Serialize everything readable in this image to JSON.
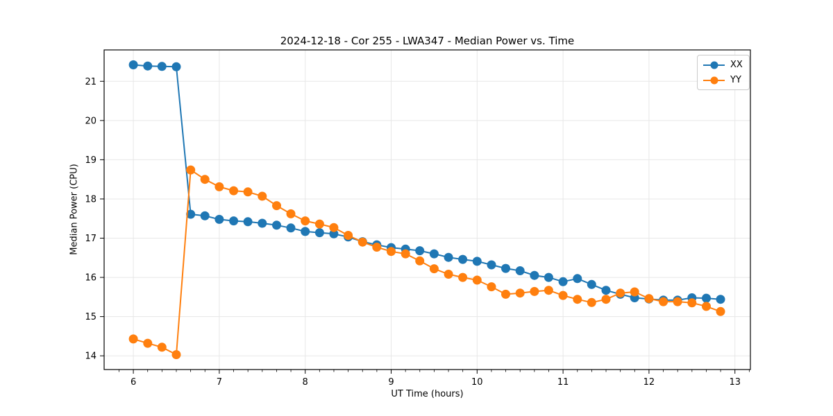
{
  "figure": {
    "title": "2024-12-18 - Cor 255 - LWA347 - Median Power vs. Time",
    "xlabel": "UT Time (hours)",
    "ylabel": "Median Power (CPU)"
  },
  "chart_data": {
    "type": "line",
    "title": "2024-12-18 - Cor 255 - LWA347 - Median Power vs. Time",
    "xlabel": "UT Time (hours)",
    "ylabel": "Median Power (CPU)",
    "grid": true,
    "legend_position": "upper right",
    "xlim": [
      5.66,
      13.18
    ],
    "ylim": [
      13.65,
      21.8
    ],
    "x_ticks": [
      6,
      7,
      8,
      9,
      10,
      11,
      12,
      13
    ],
    "y_ticks": [
      14,
      15,
      16,
      17,
      18,
      19,
      20,
      21
    ],
    "x_minor_step": 0.16667,
    "x": [
      6.0,
      6.167,
      6.333,
      6.5,
      6.667,
      6.833,
      7.0,
      7.167,
      7.333,
      7.5,
      7.667,
      7.833,
      8.0,
      8.167,
      8.333,
      8.5,
      8.667,
      8.833,
      9.0,
      9.167,
      9.333,
      9.5,
      9.667,
      9.833,
      10.0,
      10.167,
      10.333,
      10.5,
      10.667,
      10.833,
      11.0,
      11.167,
      11.333,
      11.5,
      11.667,
      11.833,
      12.0,
      12.167,
      12.333,
      12.5,
      12.667,
      12.833
    ],
    "series": [
      {
        "name": "XX",
        "color": "#1f77b4",
        "marker": "circle",
        "values": [
          21.42,
          21.39,
          21.38,
          21.37,
          17.61,
          17.57,
          17.48,
          17.44,
          17.42,
          17.38,
          17.33,
          17.26,
          17.17,
          17.14,
          17.11,
          17.03,
          16.91,
          16.83,
          16.76,
          16.72,
          16.68,
          16.6,
          16.51,
          16.46,
          16.41,
          16.32,
          16.23,
          16.17,
          16.05,
          16.0,
          15.89,
          15.97,
          15.82,
          15.67,
          15.57,
          15.48,
          15.45,
          15.42,
          15.42,
          15.48,
          15.47,
          15.44
        ]
      },
      {
        "name": "YY",
        "color": "#ff7f0e",
        "marker": "circle",
        "values": [
          14.43,
          14.32,
          14.22,
          14.03,
          18.74,
          18.5,
          18.31,
          18.21,
          18.18,
          18.07,
          17.83,
          17.62,
          17.44,
          17.36,
          17.27,
          17.07,
          16.9,
          16.77,
          16.66,
          16.6,
          16.42,
          16.22,
          16.08,
          16.0,
          15.93,
          15.76,
          15.57,
          15.6,
          15.64,
          15.67,
          15.54,
          15.44,
          15.36,
          15.44,
          15.6,
          15.63,
          15.46,
          15.38,
          15.38,
          15.35,
          15.26,
          15.13
        ]
      }
    ]
  }
}
